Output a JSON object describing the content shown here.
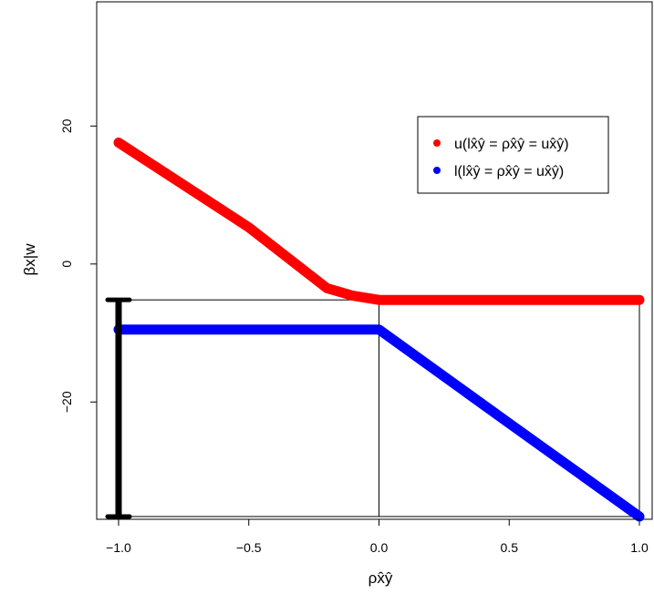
{
  "chart_data": {
    "type": "line",
    "title": "",
    "xlabel": "ρx̂ŷ",
    "ylabel": "βx|w",
    "xlim": [
      -1.0,
      1.0
    ],
    "ylim": [
      -37,
      38
    ],
    "x_ticks": [
      "−1.0",
      "−0.5",
      "0.0",
      "0.5",
      "1.0"
    ],
    "x_tick_values": [
      -1.0,
      -0.5,
      0.0,
      0.5,
      1.0
    ],
    "y_ticks": [
      "−20",
      "0",
      "20"
    ],
    "y_tick_values": [
      -20,
      0,
      20
    ],
    "grid": false,
    "legend_position": "top-right",
    "series": [
      {
        "name": "u(lx̂ŷ = ρx̂ŷ = ux̂ŷ)",
        "color": "#ff0000",
        "x": [
          -1.0,
          -0.5,
          -0.2,
          -0.1,
          0.0,
          0.5,
          1.0
        ],
        "y": [
          17.6,
          5.3,
          -3.5,
          -4.6,
          -5.2,
          -5.2,
          -5.2
        ]
      },
      {
        "name": "l(lx̂ŷ = ρx̂ŷ = ux̂ŷ)",
        "color": "#0000ff",
        "x": [
          -1.0,
          -0.5,
          0.0,
          0.5,
          1.0
        ],
        "y": [
          -9.5,
          -9.5,
          -9.5,
          -23.1,
          -36.6
        ]
      }
    ],
    "interval_bar": {
      "color": "#000000",
      "x": -1.0,
      "y_low": -36.6,
      "y_high": -5.2
    },
    "reference_box": {
      "x_from": -1.0,
      "x_to": 1.0,
      "x_mid": 0.0,
      "y_top": -5.2,
      "y_bottom": -36.6
    }
  }
}
